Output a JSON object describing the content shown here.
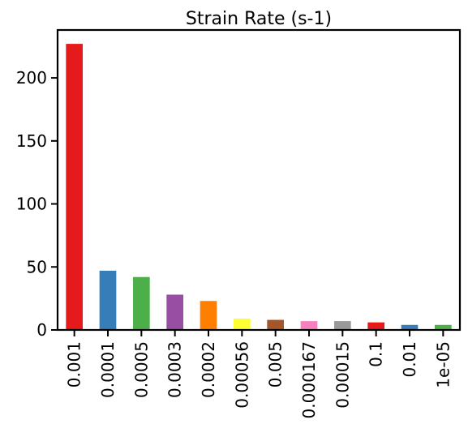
{
  "chart_data": {
    "type": "bar",
    "title": "Strain Rate (s-1)",
    "xlabel": "",
    "ylabel": "",
    "categories": [
      "0.001",
      "0.0001",
      "0.0005",
      "0.0003",
      "0.0002",
      "0.00056",
      "0.005",
      "0.000167",
      "0.00015",
      "0.1",
      "0.01",
      "1e-05"
    ],
    "values": [
      227,
      47,
      42,
      28,
      23,
      9,
      8,
      7,
      7,
      6,
      4,
      4
    ],
    "colors": [
      "#e41a1c",
      "#377eb8",
      "#4daf4a",
      "#984ea3",
      "#ff7f00",
      "#ffff33",
      "#a65628",
      "#f781bf",
      "#999999",
      "#e41a1c",
      "#377eb8",
      "#4daf4a"
    ],
    "ylim": [
      0,
      238
    ],
    "yticks": [
      0,
      50,
      100,
      150,
      200
    ],
    "grid": false,
    "legend": "none"
  }
}
